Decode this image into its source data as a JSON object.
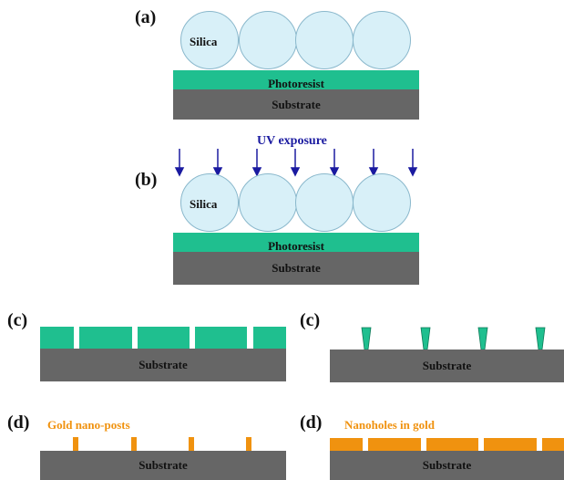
{
  "labels": {
    "a": "(a)",
    "b": "(b)",
    "c_left": "(c)",
    "c_right": "(c)",
    "d_left": "(d)",
    "d_right": "(d)"
  },
  "text": {
    "silica": "Silica",
    "photoresist": "Photoresist",
    "substrate": "Substrate",
    "uv_exposure": "UV exposure",
    "gold_nano_posts": "Gold nano-posts",
    "nanoholes_in_gold": "Nanoholes in gold"
  },
  "colors": {
    "substrate": "#666666",
    "photoresist": "#1fbf8f",
    "silica": "#d8f0f8",
    "gold": "#f0920f",
    "uv_arrow": "#1a1aa0"
  }
}
